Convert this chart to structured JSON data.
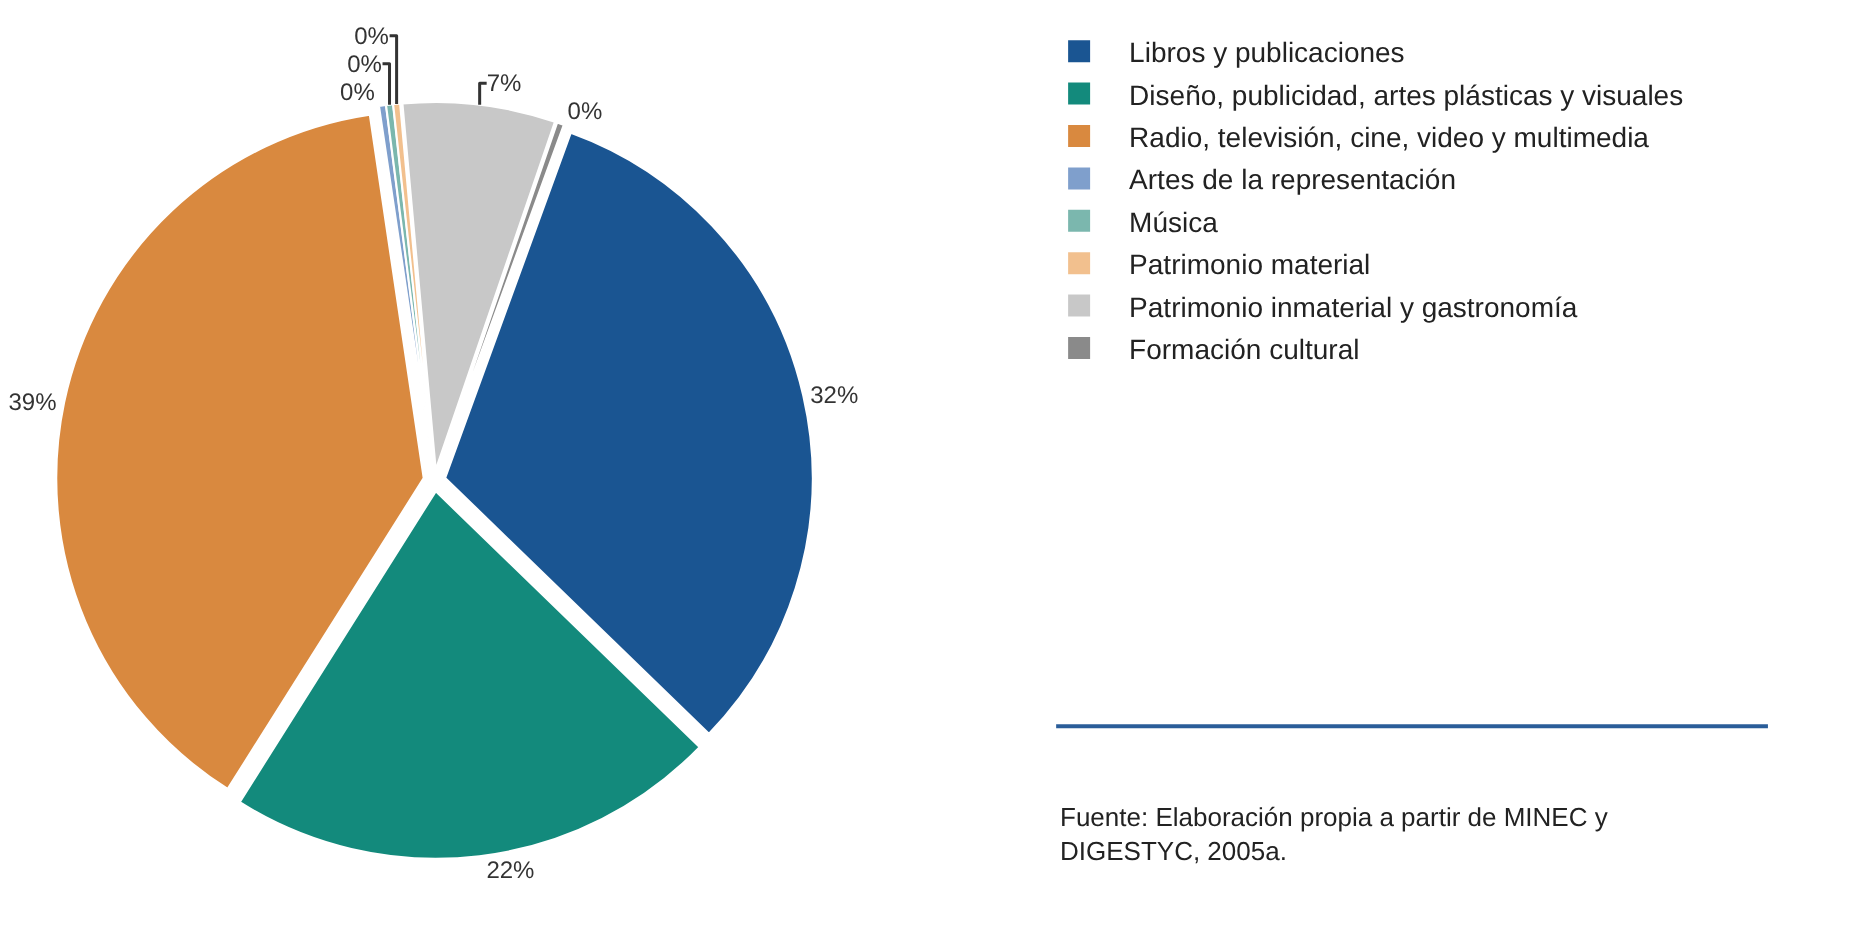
{
  "chart_data": {
    "type": "pie",
    "categories": [
      "Libros y publicaciones",
      "Diseño, publicidad, artes plásticas y visuales",
      "Radio, televisión, cine, video y multimedia",
      "Artes de la representación",
      "Música",
      "Patrimonio material",
      "Patrimonio inmaterial y gastronomía",
      "Formación cultural"
    ],
    "values": [
      31.7,
      21.7,
      38.7,
      0.3,
      0.3,
      0.3,
      6.7,
      0.3
    ],
    "value_labels": [
      "32%",
      "22%",
      "39%",
      "0%",
      "0%",
      "0%",
      "7%",
      "0%"
    ],
    "colors": [
      "#1a5592",
      "#138a7c",
      "#d9893f",
      "#7f9fcc",
      "#7bb7ae",
      "#f2c08e",
      "#c8c8c8",
      "#8a8a8a"
    ],
    "legend": "right",
    "annotations": [
      "Fuente: Elaboración propia a partir de MINEC y DIGESTYC, 2005a."
    ]
  }
}
